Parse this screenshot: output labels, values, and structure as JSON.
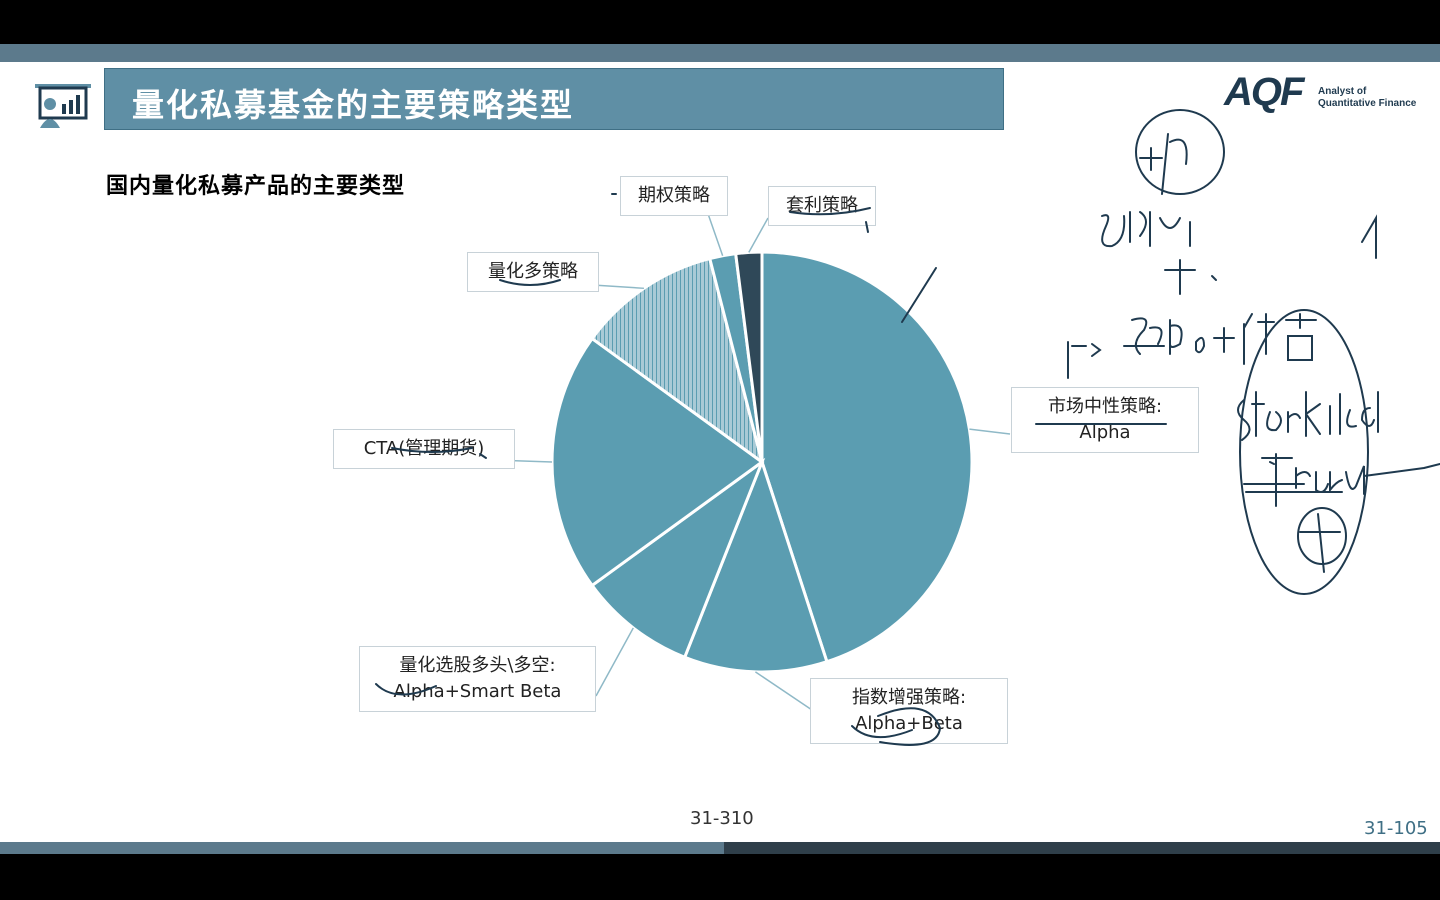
{
  "title": "量化私募基金的主要策略类型",
  "subtitle": "国内量化私募产品的主要类型",
  "logo": {
    "mark": "AQF",
    "line1": "Analyst of",
    "line2": "Quantitative Finance"
  },
  "page_center": "31-310",
  "page_right": "31-105",
  "colors": {
    "teal": "#5b9db1",
    "dark": "#2f4858",
    "title_bar": "#5f8fa5",
    "navy": "#1f3a4f"
  },
  "chart_data": {
    "type": "pie",
    "title": "国内量化私募产品的主要类型",
    "slices": [
      {
        "label": "市场中性策略:",
        "sublabel": "Alpha",
        "value": 45
      },
      {
        "label": "指数增强策略:",
        "sublabel": "Alpha+Beta",
        "value": 11
      },
      {
        "label": "量化选股多头\\多空:",
        "sublabel": "Alpha+Smart Beta",
        "value": 9
      },
      {
        "label": "CTA(管理期货)",
        "sublabel": "",
        "value": 20
      },
      {
        "label": "量化多策略",
        "sublabel": "",
        "value": 11
      },
      {
        "label": "期权策略",
        "sublabel": "",
        "value": 2
      },
      {
        "label": "套利策略",
        "sublabel": "",
        "value": 2
      }
    ]
  },
  "annotations": [
    "Alpha",
    "多头+做空",
    "Stock index",
    "future"
  ]
}
